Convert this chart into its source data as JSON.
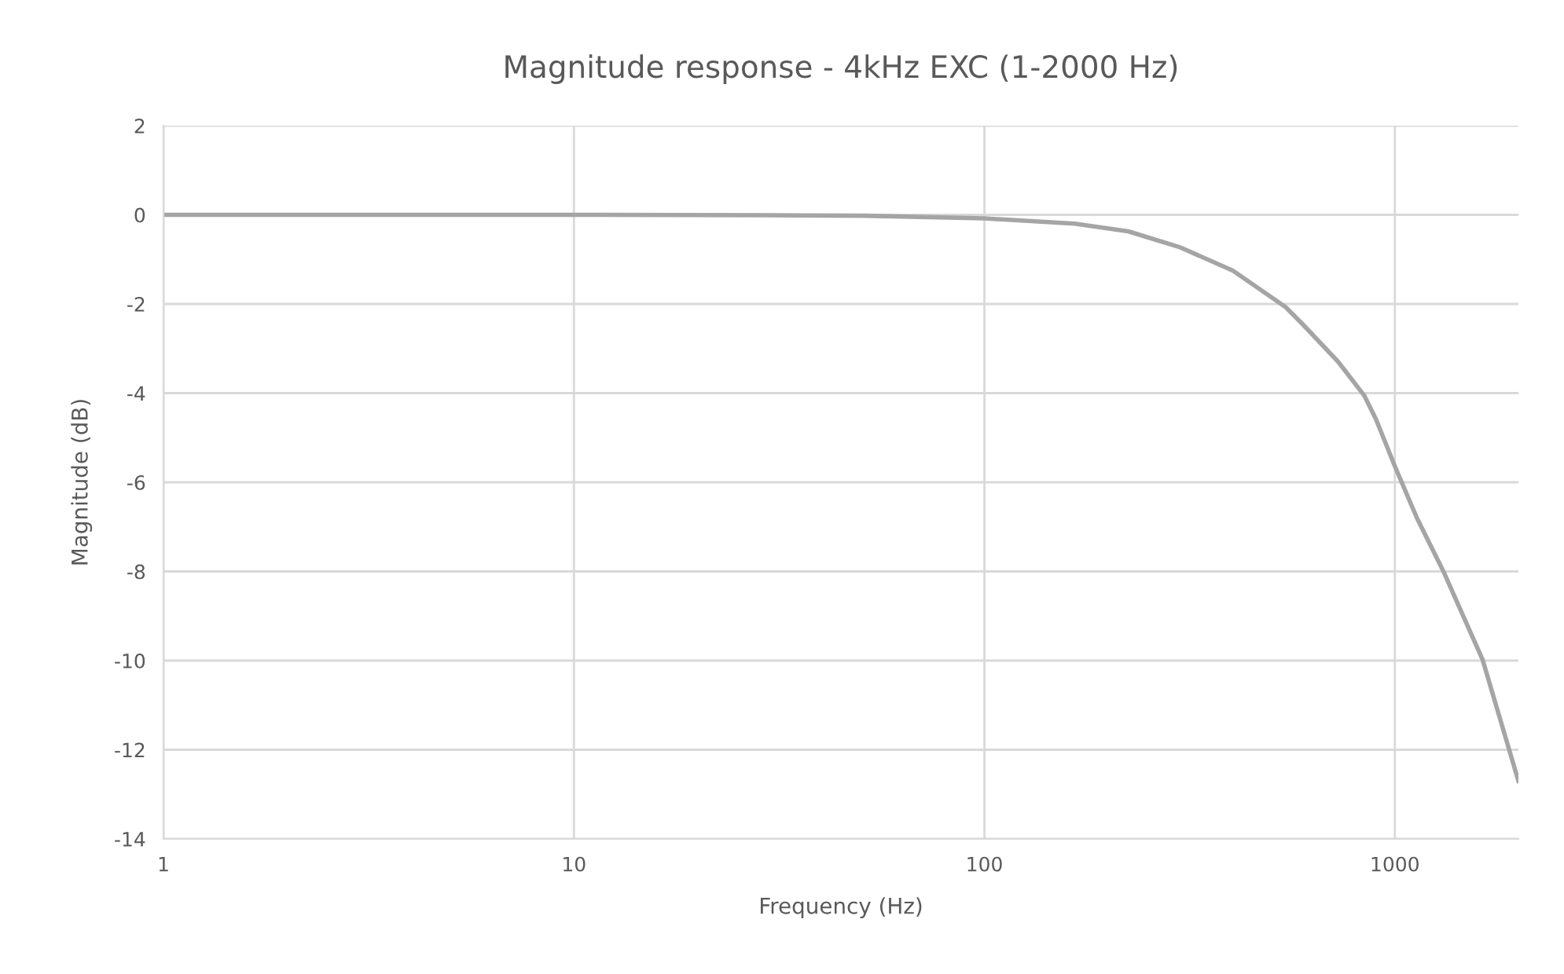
{
  "chart_data": {
    "type": "line",
    "title": "Magnitude response - 4kHz EXC (1-2000 Hz)",
    "xlabel": "Frequency (Hz)",
    "ylabel": "Magnitude (dB)",
    "x": [
      1,
      10,
      30,
      51,
      100,
      166,
      224,
      300,
      403,
      542,
      600,
      728,
      843,
      900,
      1000,
      1133,
      1312,
      1636,
      2000
    ],
    "series": [
      {
        "color": "#a5a5a5",
        "values": [
          0,
          0,
          -0.01,
          -0.02,
          -0.08,
          -0.2,
          -0.37,
          -0.73,
          -1.25,
          -2.07,
          -2.48,
          -3.3,
          -4.06,
          -4.59,
          -5.64,
          -6.81,
          -7.99,
          -9.98,
          -12.7
        ]
      }
    ],
    "log": "x",
    "xlim": [
      1,
      2000
    ],
    "xticks": [
      1,
      10,
      100,
      1000
    ],
    "ylim": [
      -14,
      2
    ],
    "yticks": [
      -14,
      -12,
      -10,
      -8,
      -6,
      -4,
      -2,
      0,
      2
    ],
    "grid": true,
    "marker": "none",
    "line_style": "solid"
  }
}
